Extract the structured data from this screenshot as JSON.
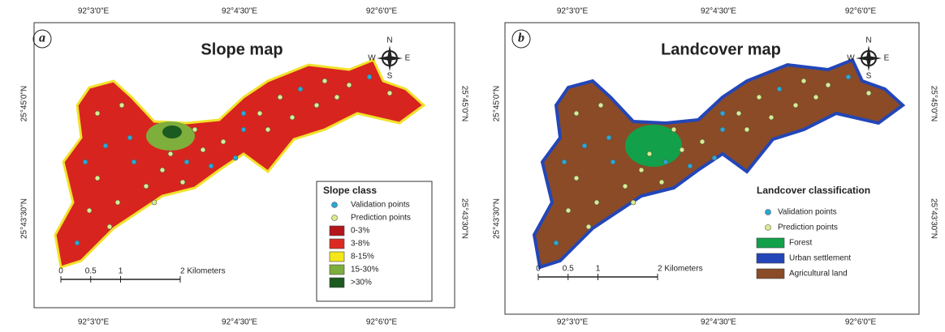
{
  "panels": [
    {
      "label": "a",
      "title": "Slope map",
      "top_coords": [
        "92°3'0\"E",
        "92°4'30\"E",
        "92°6'0\"E"
      ],
      "bottom_coords": [
        "92°3'0\"E",
        "92°4'30\"E",
        "92°6'0\"E"
      ],
      "left_coords": [
        "25°45'0\"N",
        "25°43'30\"N"
      ],
      "right_coords": [
        "25°45'0\"N",
        "25°43'30\"N"
      ],
      "north": {
        "n": "N",
        "s": "S",
        "e": "E",
        "w": "W"
      },
      "legend": {
        "title": "Slope class",
        "points": [
          {
            "label": "Validation points",
            "color": "#2aa7d6"
          },
          {
            "label": "Prediction points",
            "color": "#d9ec8c"
          }
        ],
        "classes": [
          {
            "label": "0-3%",
            "color": "#b4141c"
          },
          {
            "label": "3-8%",
            "color": "#dc2a22"
          },
          {
            "label": "8-15%",
            "color": "#f4e61a"
          },
          {
            "label": "15-30%",
            "color": "#7eae3c"
          },
          {
            "label": ">30%",
            "color": "#1b5a20"
          }
        ]
      },
      "scale": [
        "0",
        "0.5",
        "1",
        "2 Kilometers"
      ]
    },
    {
      "label": "b",
      "title": "Landcover map",
      "top_coords": [
        "92°3'0\"E",
        "92°4'30\"E",
        "92°6'0\"E"
      ],
      "bottom_coords": [
        "92°3'0\"E",
        "92°4'30\"E",
        "92°6'0\"E"
      ],
      "left_coords": [
        "25°45'0\"N",
        "25°43'30\"N"
      ],
      "right_coords": [
        "25°45'0\"N",
        "25°43'30\"N"
      ],
      "north": {
        "n": "N",
        "s": "S",
        "e": "E",
        "w": "W"
      },
      "legend": {
        "title": "Landcover classification",
        "points": [
          {
            "label": "Validation points",
            "color": "#2aa7d6"
          },
          {
            "label": "Prediction points",
            "color": "#d9ec8c"
          }
        ],
        "classes": [
          {
            "label": "Forest",
            "color": "#12a04a"
          },
          {
            "label": "Urban settlement",
            "color": "#2346b8"
          },
          {
            "label": "Agricultural land",
            "color": "#8a4b26"
          }
        ]
      },
      "scale": [
        "0",
        "0.5",
        "1",
        "2 Kilometers"
      ]
    }
  ]
}
